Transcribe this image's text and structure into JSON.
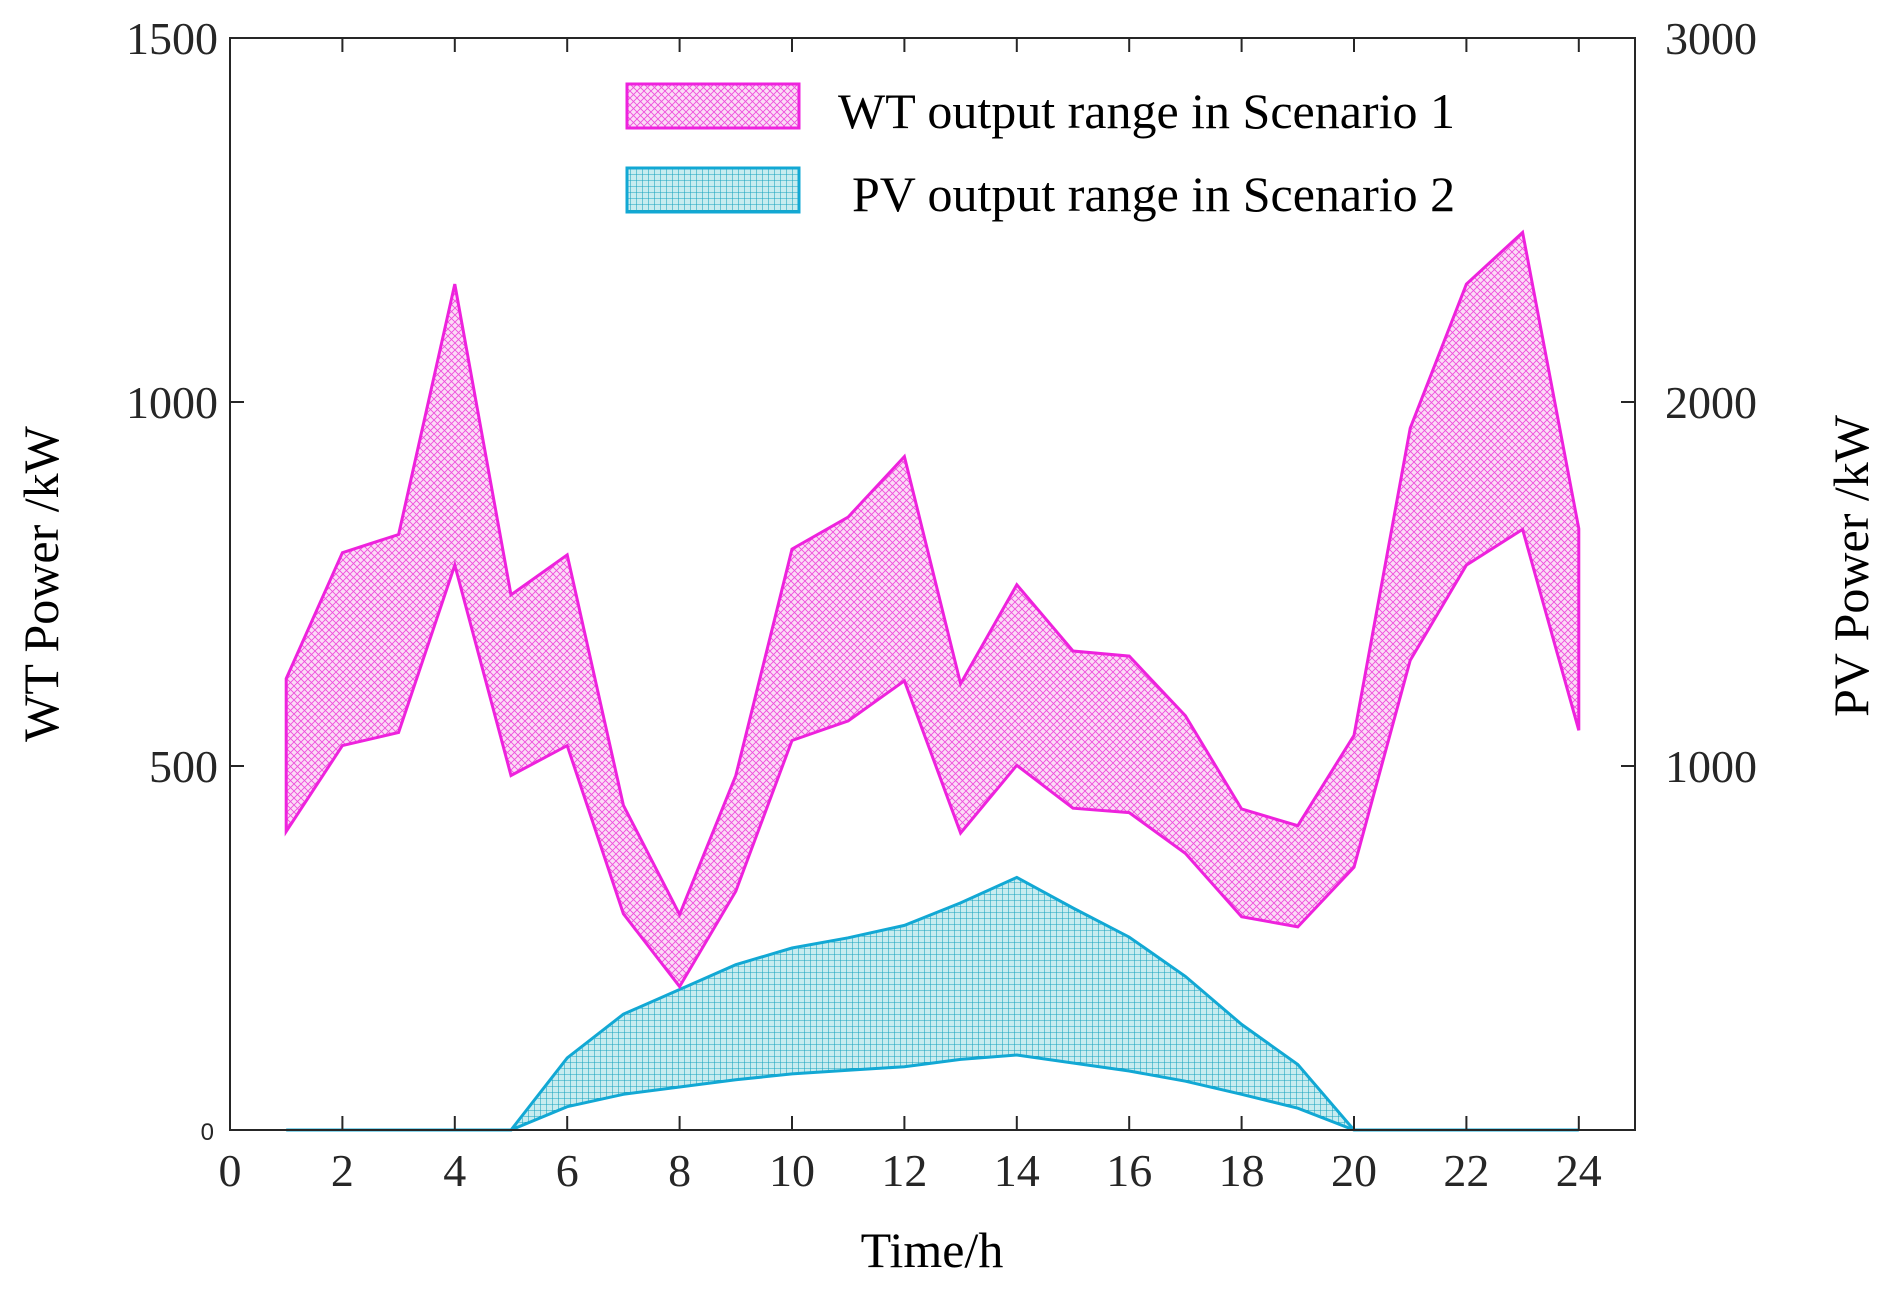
{
  "chart_data": {
    "type": "area",
    "xlabel": "Time/h",
    "ylabel_left": "WT Power /kW",
    "ylabel_right": "PV Power /kW",
    "xlim": [
      0,
      25
    ],
    "ylim_left": [
      0,
      1500
    ],
    "ylim_right": [
      0,
      3000
    ],
    "xticks": [
      "0",
      "2",
      "4",
      "6",
      "8",
      "10",
      "12",
      "14",
      "16",
      "18",
      "20",
      "22",
      "24"
    ],
    "yticks_left": [
      "0",
      "500",
      "1000",
      "1500"
    ],
    "yticks_right": [
      "1000",
      "2000",
      "3000"
    ],
    "x": [
      1,
      2,
      3,
      4,
      5,
      6,
      7,
      8,
      9,
      10,
      11,
      12,
      13,
      14,
      15,
      16,
      17,
      18,
      19,
      20,
      21,
      22,
      23,
      24
    ],
    "legend_position": "top-right",
    "series": [
      {
        "name": "WT output range in Scenario 1",
        "axis": "left",
        "color": "#ee22dd",
        "fill": "#f7b5ec",
        "upper": [
          620,
          793,
          818,
          1162,
          735,
          790,
          446,
          296,
          487,
          798,
          842,
          925,
          613,
          749,
          658,
          651,
          569,
          441,
          418,
          542,
          964,
          1162,
          1233,
          826
        ],
        "lower": [
          410,
          528,
          546,
          776,
          487,
          528,
          297,
          197,
          328,
          535,
          562,
          617,
          408,
          501,
          442,
          436,
          380,
          293,
          279,
          361,
          645,
          776,
          825,
          549
        ]
      },
      {
        "name": "PV output range in Scenario 2",
        "axis": "right",
        "color": "#12a8d4",
        "fill": "#7ed3dc",
        "upper": [
          0,
          0,
          0,
          0,
          0,
          198,
          318,
          386,
          454,
          500,
          528,
          562,
          624,
          694,
          610,
          530,
          422,
          290,
          180,
          0,
          0,
          0,
          0,
          0
        ],
        "lower": [
          0,
          0,
          0,
          0,
          0,
          64,
          98,
          118,
          138,
          154,
          164,
          174,
          194,
          206,
          184,
          162,
          134,
          98,
          60,
          0,
          0,
          0,
          0,
          0
        ]
      }
    ]
  }
}
